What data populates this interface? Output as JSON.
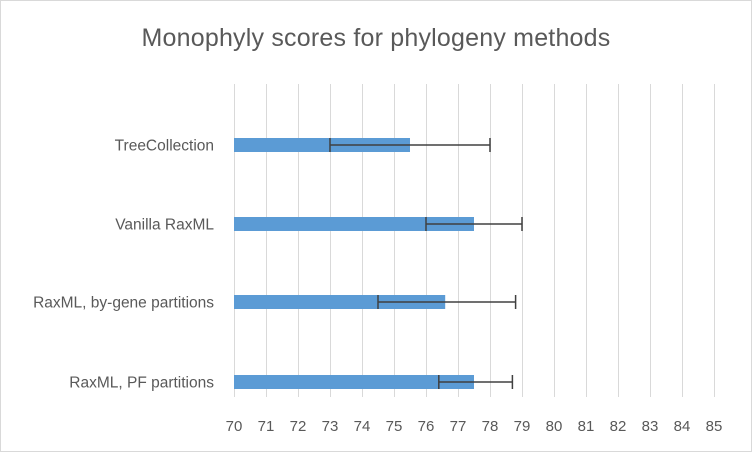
{
  "chart_data": {
    "type": "bar",
    "orientation": "horizontal",
    "title": "Monophyly scores for phylogeny methods",
    "xlabel": "",
    "ylabel": "",
    "xlim": [
      70,
      85
    ],
    "xticks": [
      70,
      71,
      72,
      73,
      74,
      75,
      76,
      77,
      78,
      79,
      80,
      81,
      82,
      83,
      84,
      85
    ],
    "grid": "vertical",
    "legend": "none",
    "categories": [
      "TreeCollection",
      "Vanilla RaxML",
      "RaxML, by-gene partitions",
      "RaxML, PF partitions"
    ],
    "values": [
      75.5,
      77.5,
      76.6,
      77.5
    ],
    "error_low": [
      73.0,
      76.0,
      74.5,
      76.4
    ],
    "error_high": [
      78.0,
      79.0,
      78.8,
      78.7
    ],
    "bar_color": "#5b9bd5",
    "error_bar_color": "#404040",
    "grid_color": "#d9d9d9"
  }
}
